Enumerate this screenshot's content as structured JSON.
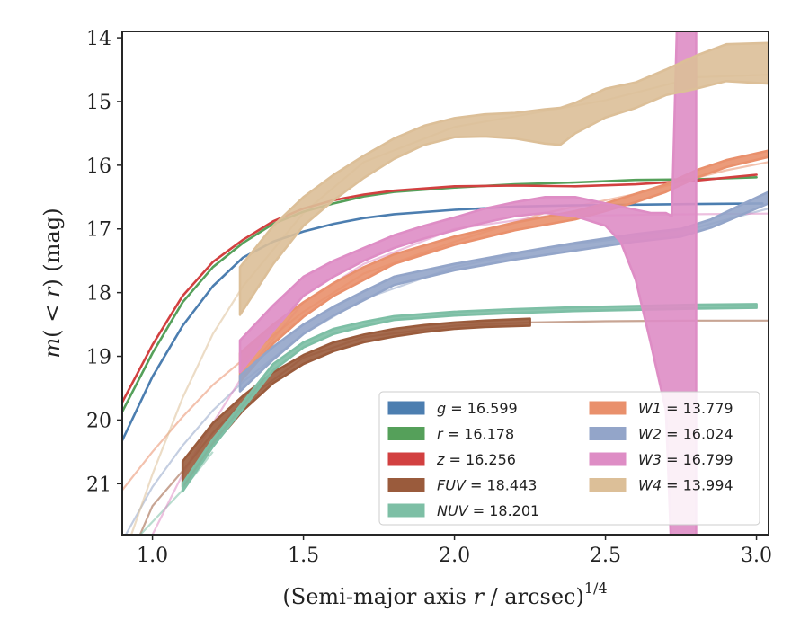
{
  "chart_data": {
    "type": "line",
    "title": "",
    "xlabel": "(Semi-major axis r / arcsec)",
    "xlabel_parts": {
      "prefix": "(Semi-major axis ",
      "var": "r",
      "middle": " / arcsec)",
      "sup": "1/4"
    },
    "ylabel": "m(<r) (mag)",
    "ylabel_parts": {
      "m": "m",
      "open": "(",
      "lt": " < ",
      "r": "r",
      "close": ")",
      "unit": " (mag)"
    },
    "xlim": [
      0.9,
      3.04
    ],
    "ylim": [
      21.8,
      13.9
    ],
    "y_inverted": true,
    "xticks": [
      "1.0",
      "1.5",
      "2.0",
      "2.5",
      "3.0"
    ],
    "xtick_values": [
      1.0,
      1.5,
      2.0,
      2.5,
      3.0
    ],
    "yticks": [
      "14",
      "15",
      "16",
      "17",
      "18",
      "19",
      "20",
      "21"
    ],
    "ytick_values": [
      14,
      15,
      16,
      17,
      18,
      19,
      20,
      21
    ],
    "grid": false,
    "legend_placement": "lower-right",
    "series": [
      {
        "name": "g = 16.599",
        "label_var": "g",
        "label_val": "16.599",
        "color": "#4c7eb0",
        "band": [
          [
            0.9,
            20.32,
            20.32
          ],
          [
            1.0,
            19.32,
            19.32
          ],
          [
            1.1,
            18.52,
            18.52
          ],
          [
            1.2,
            17.9,
            17.9
          ],
          [
            1.3,
            17.45,
            17.45
          ],
          [
            1.4,
            17.2,
            17.2
          ],
          [
            1.5,
            17.04,
            17.04
          ],
          [
            1.6,
            16.92,
            16.92
          ],
          [
            1.7,
            16.83,
            16.83
          ],
          [
            1.8,
            16.77,
            16.77
          ],
          [
            2.0,
            16.7,
            16.7
          ],
          [
            2.2,
            16.65,
            16.65
          ],
          [
            2.4,
            16.63,
            16.63
          ],
          [
            2.6,
            16.62,
            16.62
          ],
          [
            2.8,
            16.61,
            16.61
          ],
          [
            3.02,
            16.6,
            16.6
          ]
        ],
        "trail": []
      },
      {
        "name": "r = 16.178",
        "label_var": "r",
        "label_val": "16.178",
        "color": "#55a05a",
        "band": [
          [
            0.9,
            19.87,
            19.87
          ],
          [
            1.0,
            18.95,
            18.95
          ],
          [
            1.1,
            18.15,
            18.15
          ],
          [
            1.2,
            17.6,
            17.6
          ],
          [
            1.3,
            17.22,
            17.22
          ],
          [
            1.4,
            16.92,
            16.92
          ],
          [
            1.5,
            16.73,
            16.73
          ],
          [
            1.6,
            16.6,
            16.6
          ],
          [
            1.7,
            16.49,
            16.49
          ],
          [
            1.8,
            16.42,
            16.42
          ],
          [
            2.0,
            16.35,
            16.35
          ],
          [
            2.2,
            16.3,
            16.3
          ],
          [
            2.4,
            16.27,
            16.27
          ],
          [
            2.6,
            16.23,
            16.23
          ],
          [
            2.8,
            16.22,
            16.22
          ],
          [
            3.0,
            16.19,
            16.19
          ]
        ],
        "trail": []
      },
      {
        "name": "z = 16.256",
        "label_var": "z",
        "label_val": "16.256",
        "color": "#d24040",
        "band": [
          [
            0.9,
            19.72,
            19.72
          ],
          [
            1.0,
            18.82,
            18.82
          ],
          [
            1.1,
            18.05,
            18.05
          ],
          [
            1.2,
            17.52,
            17.52
          ],
          [
            1.3,
            17.17,
            17.17
          ],
          [
            1.4,
            16.88,
            16.88
          ],
          [
            1.5,
            16.68,
            16.68
          ],
          [
            1.6,
            16.55,
            16.55
          ],
          [
            1.7,
            16.46,
            16.46
          ],
          [
            1.8,
            16.4,
            16.4
          ],
          [
            2.0,
            16.33,
            16.33
          ],
          [
            2.2,
            16.32,
            16.32
          ],
          [
            2.4,
            16.33,
            16.33
          ],
          [
            2.6,
            16.3,
            16.3
          ],
          [
            2.8,
            16.24,
            16.24
          ],
          [
            3.0,
            16.15,
            16.15
          ]
        ],
        "trail": []
      },
      {
        "name": "FUV = 18.443",
        "label_var": "FUV",
        "label_val": "18.443",
        "color": "#9a5b3c",
        "band": [
          [
            1.1,
            20.65,
            21.05
          ],
          [
            1.2,
            20.05,
            20.4
          ],
          [
            1.3,
            19.62,
            19.85
          ],
          [
            1.4,
            19.25,
            19.42
          ],
          [
            1.5,
            18.98,
            19.12
          ],
          [
            1.6,
            18.78,
            18.92
          ],
          [
            1.7,
            18.66,
            18.78
          ],
          [
            1.8,
            18.57,
            18.69
          ],
          [
            1.9,
            18.51,
            18.62
          ],
          [
            2.0,
            18.47,
            18.57
          ],
          [
            2.1,
            18.44,
            18.54
          ],
          [
            2.25,
            18.41,
            18.52
          ]
        ],
        "trail": [
          [
            0.9,
            22.3
          ],
          [
            0.95,
            21.9
          ],
          [
            1.0,
            21.35
          ],
          [
            1.1,
            20.8
          ],
          [
            1.2,
            20.2
          ],
          [
            1.3,
            19.72
          ],
          [
            1.5,
            19.02
          ],
          [
            1.7,
            18.7
          ],
          [
            2.0,
            18.52
          ],
          [
            2.25,
            18.47
          ],
          [
            2.5,
            18.45
          ],
          [
            2.8,
            18.44
          ],
          [
            3.04,
            18.44
          ]
        ]
      },
      {
        "name": "NUV = 18.201",
        "label_var": "NUV",
        "label_val": "18.201",
        "color": "#7dbfa5",
        "band": [
          [
            1.1,
            21.0,
            21.12
          ],
          [
            1.2,
            20.3,
            20.42
          ],
          [
            1.3,
            19.72,
            19.82
          ],
          [
            1.4,
            19.12,
            19.22
          ],
          [
            1.5,
            18.78,
            18.86
          ],
          [
            1.6,
            18.57,
            18.65
          ],
          [
            1.7,
            18.46,
            18.53
          ],
          [
            1.8,
            18.37,
            18.43
          ],
          [
            2.0,
            18.3,
            18.36
          ],
          [
            2.2,
            18.26,
            18.32
          ],
          [
            2.4,
            18.23,
            18.29
          ],
          [
            2.6,
            18.21,
            18.27
          ],
          [
            2.8,
            18.19,
            18.25
          ],
          [
            3.0,
            18.18,
            18.24
          ]
        ],
        "trail": [
          [
            0.9,
            22.1
          ],
          [
            1.0,
            21.6
          ],
          [
            1.1,
            21.1
          ],
          [
            1.2,
            20.5
          ]
        ]
      },
      {
        "name": "W1 = 13.779",
        "label_var": "W1",
        "label_val": "13.779",
        "color": "#e9906c",
        "band": [
          [
            1.29,
            18.95,
            19.4
          ],
          [
            1.4,
            18.5,
            18.8
          ],
          [
            1.5,
            18.15,
            18.38
          ],
          [
            1.6,
            17.85,
            18.05
          ],
          [
            1.7,
            17.6,
            17.8
          ],
          [
            1.8,
            17.4,
            17.55
          ],
          [
            2.0,
            17.12,
            17.25
          ],
          [
            2.2,
            16.9,
            17.02
          ],
          [
            2.4,
            16.72,
            16.85
          ],
          [
            2.5,
            16.6,
            16.72
          ],
          [
            2.6,
            16.45,
            16.58
          ],
          [
            2.7,
            16.3,
            16.42
          ],
          [
            2.8,
            16.08,
            16.2
          ],
          [
            2.9,
            15.92,
            16.03
          ],
          [
            3.04,
            15.77,
            15.87
          ]
        ],
        "trail": [
          [
            0.9,
            21.1
          ],
          [
            1.0,
            20.5
          ],
          [
            1.1,
            19.95
          ],
          [
            1.2,
            19.45
          ],
          [
            1.3,
            19.05
          ],
          [
            1.5,
            18.3
          ],
          [
            1.7,
            17.7
          ],
          [
            2.0,
            17.2
          ],
          [
            2.3,
            16.75
          ],
          [
            2.6,
            16.45
          ],
          [
            2.8,
            16.2
          ],
          [
            2.9,
            16.08
          ],
          [
            3.04,
            15.95
          ]
        ]
      },
      {
        "name": "W2 = 16.024",
        "label_var": "W2",
        "label_val": "16.024",
        "color": "#93a5c9",
        "band": [
          [
            1.29,
            19.3,
            19.55
          ],
          [
            1.4,
            18.85,
            19.05
          ],
          [
            1.5,
            18.5,
            18.65
          ],
          [
            1.6,
            18.22,
            18.36
          ],
          [
            1.7,
            17.98,
            18.12
          ],
          [
            1.8,
            17.75,
            17.88
          ],
          [
            2.0,
            17.55,
            17.65
          ],
          [
            2.2,
            17.38,
            17.48
          ],
          [
            2.4,
            17.22,
            17.34
          ],
          [
            2.6,
            17.08,
            17.2
          ],
          [
            2.75,
            17.0,
            17.12
          ],
          [
            2.85,
            16.85,
            16.98
          ],
          [
            2.95,
            16.62,
            16.78
          ],
          [
            3.04,
            16.42,
            16.6
          ]
        ],
        "trail": [
          [
            0.9,
            21.9
          ],
          [
            1.0,
            21.05
          ],
          [
            1.1,
            20.4
          ],
          [
            1.2,
            19.85
          ],
          [
            1.3,
            19.4
          ],
          [
            1.5,
            18.65
          ],
          [
            1.7,
            18.1
          ],
          [
            2.0,
            17.6
          ],
          [
            2.3,
            17.3
          ],
          [
            2.6,
            17.12
          ],
          [
            2.8,
            16.98
          ],
          [
            3.04,
            16.68
          ]
        ]
      },
      {
        "name": "W3 = 16.799",
        "label_var": "W3",
        "label_val": "16.799",
        "color": "#de8dc5",
        "band": [
          [
            1.29,
            18.75,
            19.25
          ],
          [
            1.4,
            18.2,
            18.6
          ],
          [
            1.5,
            17.75,
            18.05
          ],
          [
            1.6,
            17.5,
            17.75
          ],
          [
            1.7,
            17.3,
            17.5
          ],
          [
            1.8,
            17.1,
            17.3
          ],
          [
            1.9,
            16.95,
            17.15
          ],
          [
            2.0,
            16.82,
            17.02
          ],
          [
            2.1,
            16.68,
            16.9
          ],
          [
            2.2,
            16.58,
            16.8
          ],
          [
            2.3,
            16.5,
            16.75
          ],
          [
            2.4,
            16.5,
            16.8
          ],
          [
            2.5,
            16.6,
            16.95
          ],
          [
            2.55,
            16.65,
            17.2
          ],
          [
            2.6,
            16.7,
            17.8
          ],
          [
            2.65,
            16.75,
            18.8
          ],
          [
            2.7,
            16.75,
            19.85
          ],
          [
            2.72,
            16.8,
            22.3
          ],
          [
            2.74,
            13.2,
            22.3
          ],
          [
            2.78,
            13.2,
            22.3
          ],
          [
            2.8,
            13.2,
            22.3
          ]
        ],
        "trail": [
          [
            1.0,
            21.8
          ],
          [
            1.1,
            20.85
          ],
          [
            1.2,
            20.05
          ],
          [
            1.3,
            19.3
          ],
          [
            1.5,
            18.15
          ],
          [
            1.7,
            17.55
          ],
          [
            2.0,
            17.0
          ],
          [
            2.3,
            16.8
          ],
          [
            2.6,
            16.78
          ],
          [
            2.8,
            16.77
          ],
          [
            3.04,
            16.76
          ]
        ]
      },
      {
        "name": "W4 = 13.994",
        "label_var": "W4",
        "label_val": "13.994",
        "color": "#dcbf98",
        "band": [
          [
            1.29,
            17.6,
            18.35
          ],
          [
            1.4,
            16.95,
            17.55
          ],
          [
            1.5,
            16.5,
            16.95
          ],
          [
            1.6,
            16.15,
            16.55
          ],
          [
            1.7,
            15.85,
            16.2
          ],
          [
            1.8,
            15.58,
            15.9
          ],
          [
            1.9,
            15.38,
            15.68
          ],
          [
            2.0,
            15.26,
            15.56
          ],
          [
            2.1,
            15.2,
            15.55
          ],
          [
            2.2,
            15.18,
            15.58
          ],
          [
            2.3,
            15.12,
            15.66
          ],
          [
            2.35,
            15.1,
            15.68
          ],
          [
            2.4,
            15.02,
            15.5
          ],
          [
            2.5,
            14.8,
            15.25
          ],
          [
            2.6,
            14.7,
            15.1
          ],
          [
            2.7,
            14.5,
            14.9
          ],
          [
            2.8,
            14.28,
            14.8
          ],
          [
            2.9,
            14.1,
            14.68
          ],
          [
            3.04,
            14.08,
            14.72
          ]
        ],
        "trail": [
          [
            0.93,
            21.8
          ],
          [
            1.0,
            20.85
          ],
          [
            1.1,
            19.65
          ],
          [
            1.2,
            18.65
          ],
          [
            1.3,
            17.9
          ],
          [
            1.5,
            16.75
          ],
          [
            1.7,
            15.95
          ],
          [
            2.0,
            15.4
          ],
          [
            2.3,
            15.15
          ],
          [
            2.5,
            14.98
          ],
          [
            2.8,
            14.62
          ],
          [
            3.04,
            14.58
          ]
        ]
      }
    ]
  }
}
